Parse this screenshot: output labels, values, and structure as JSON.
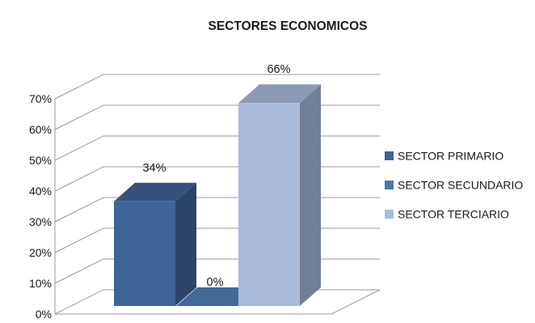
{
  "chart_data": {
    "type": "bar",
    "title": "SECTORES ECONOMICOS",
    "categories": [
      "SECTOR PRIMARIO",
      "SECTOR SECUNDARIO",
      "SECTOR TERCIARIO"
    ],
    "values": [
      34,
      0,
      66
    ],
    "data_labels": [
      "34%",
      "0%",
      "66%"
    ],
    "colors": [
      "#3f6497",
      "#4a76ab",
      "#a9bbdb"
    ],
    "ylim": [
      0,
      70
    ],
    "y_ticks": [
      "0%",
      "10%",
      "20%",
      "30%",
      "40%",
      "50%",
      "60%",
      "70%"
    ],
    "legend": {
      "placement": "right",
      "entries": [
        "SECTOR PRIMARIO",
        "SECTOR SECUNDARIO",
        "SECTOR TERCIARIO"
      ]
    },
    "grid": true,
    "style": "3d-column"
  }
}
